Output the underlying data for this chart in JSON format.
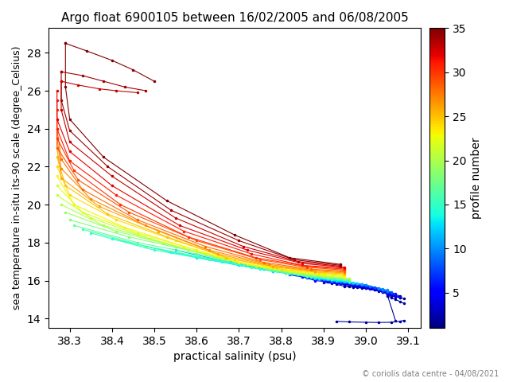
{
  "title": "Argo float 6900105 between 16/02/2005 and 06/08/2005",
  "xlabel": "practical salinity (psu)",
  "ylabel": "sea temperature in-situ its-90 scale (degree_Celsius)",
  "colorbar_label": "profile number",
  "copyright": "© coriolis data centre - 04/08/2021",
  "xlim": [
    38.25,
    39.13
  ],
  "ylim": [
    13.5,
    29.3
  ],
  "colormap": "jet",
  "vmin": 1,
  "vmax": 35,
  "profiles": [
    {
      "num": 1,
      "sal": [
        39.08,
        39.06,
        39.04,
        39.02,
        39.0,
        38.98,
        38.96,
        38.95
      ],
      "temp": [
        15.2,
        15.3,
        15.4,
        15.5,
        15.6,
        15.65,
        15.7,
        15.75
      ]
    },
    {
      "num": 2,
      "sal": [
        39.07,
        39.05,
        39.03,
        39.01,
        38.99,
        38.97,
        38.95,
        38.93
      ],
      "temp": [
        13.9,
        15.3,
        15.45,
        15.55,
        15.6,
        15.65,
        15.7,
        15.8
      ]
    },
    {
      "num": 3,
      "sal": [
        39.06,
        39.04,
        39.02,
        39.0,
        38.98,
        38.95,
        38.92,
        38.9
      ],
      "temp": [
        15.3,
        15.4,
        15.5,
        15.6,
        15.7,
        15.8,
        15.85,
        15.9
      ]
    },
    {
      "num": 4,
      "sal": [
        39.06,
        39.04,
        39.02,
        39.0,
        38.97,
        38.94,
        38.91,
        38.88
      ],
      "temp": [
        15.35,
        15.45,
        15.55,
        15.65,
        15.75,
        15.85,
        15.95,
        16.1
      ]
    },
    {
      "num": 5,
      "sal": [
        39.05,
        39.03,
        39.01,
        38.98,
        38.95,
        38.92,
        38.88,
        38.85
      ],
      "temp": [
        15.4,
        15.5,
        15.6,
        15.7,
        15.8,
        15.9,
        16.0,
        16.2
      ]
    },
    {
      "num": 6,
      "sal": [
        39.04,
        39.02,
        39.0,
        38.97,
        38.93,
        38.9,
        38.86,
        38.82
      ],
      "temp": [
        15.5,
        15.6,
        15.7,
        15.8,
        15.9,
        16.0,
        16.15,
        16.3
      ]
    },
    {
      "num": 7,
      "sal": [
        39.03,
        39.01,
        38.99,
        38.96,
        38.92,
        38.88,
        38.84,
        38.8
      ],
      "temp": [
        15.6,
        15.7,
        15.8,
        15.9,
        16.0,
        16.1,
        16.3,
        16.5
      ]
    },
    {
      "num": 8,
      "sal": [
        39.02,
        39.0,
        38.97,
        38.94,
        38.9,
        38.86,
        38.81,
        38.76
      ],
      "temp": [
        15.65,
        15.75,
        15.85,
        15.95,
        16.05,
        16.2,
        16.4,
        16.6
      ]
    },
    {
      "num": 9,
      "sal": [
        39.01,
        38.99,
        38.96,
        38.93,
        38.89,
        38.84,
        38.78,
        38.72
      ],
      "temp": [
        15.7,
        15.8,
        15.9,
        16.0,
        16.1,
        16.3,
        16.5,
        16.8
      ]
    },
    {
      "num": 10,
      "sal": [
        39.0,
        38.97,
        38.94,
        38.9,
        38.87,
        38.82,
        38.75,
        38.68
      ],
      "temp": [
        15.75,
        15.85,
        15.95,
        16.05,
        16.2,
        16.4,
        16.7,
        17.0
      ]
    },
    {
      "num": 11,
      "sal": [
        38.99,
        38.96,
        38.92,
        38.88,
        38.84,
        38.78,
        38.7,
        38.62
      ],
      "temp": [
        15.8,
        15.9,
        16.0,
        16.1,
        16.3,
        16.5,
        16.8,
        17.2
      ]
    },
    {
      "num": 12,
      "sal": [
        38.98,
        38.95,
        38.91,
        38.86,
        38.81,
        38.74,
        38.65,
        38.55
      ],
      "temp": [
        15.85,
        15.95,
        16.05,
        16.2,
        16.4,
        16.7,
        17.1,
        17.6
      ]
    },
    {
      "num": 13,
      "sal": [
        38.97,
        38.93,
        38.89,
        38.84,
        38.78,
        38.7,
        38.6,
        38.48
      ],
      "temp": [
        15.9,
        16.0,
        16.1,
        16.3,
        16.5,
        16.8,
        17.2,
        17.8
      ]
    },
    {
      "num": 14,
      "sal": [
        38.96,
        38.92,
        38.88,
        38.82,
        38.75,
        38.66,
        38.54,
        38.4
      ],
      "temp": [
        15.95,
        16.05,
        16.15,
        16.35,
        16.6,
        17.0,
        17.5,
        18.2
      ]
    },
    {
      "num": 15,
      "sal": [
        38.96,
        38.92,
        38.87,
        38.81,
        38.73,
        38.63,
        38.5,
        38.35
      ],
      "temp": [
        16.0,
        16.1,
        16.2,
        16.4,
        16.7,
        17.1,
        17.6,
        18.5
      ]
    },
    {
      "num": 16,
      "sal": [
        38.96,
        38.92,
        38.87,
        38.81,
        38.73,
        38.62,
        38.48,
        38.33
      ],
      "temp": [
        16.0,
        16.1,
        16.2,
        16.4,
        16.8,
        17.2,
        17.8,
        18.7
      ]
    },
    {
      "num": 17,
      "sal": [
        38.96,
        38.91,
        38.86,
        38.79,
        38.71,
        38.6,
        38.46,
        38.31
      ],
      "temp": [
        16.05,
        16.15,
        16.25,
        16.5,
        16.9,
        17.4,
        18.0,
        18.9
      ]
    },
    {
      "num": 18,
      "sal": [
        38.96,
        38.91,
        38.85,
        38.78,
        38.69,
        38.58,
        38.44,
        38.3
      ],
      "temp": [
        16.05,
        16.15,
        16.3,
        16.55,
        17.0,
        17.6,
        18.3,
        19.2
      ]
    },
    {
      "num": 19,
      "sal": [
        38.96,
        38.91,
        38.85,
        38.77,
        38.67,
        38.55,
        38.41,
        38.29
      ],
      "temp": [
        16.1,
        16.2,
        16.35,
        16.6,
        17.1,
        17.8,
        18.6,
        19.6
      ]
    },
    {
      "num": 20,
      "sal": [
        38.96,
        38.91,
        38.84,
        38.76,
        38.65,
        38.52,
        38.38,
        38.28
      ],
      "temp": [
        16.1,
        16.2,
        16.4,
        16.7,
        17.2,
        18.0,
        18.9,
        20.0
      ]
    },
    {
      "num": 21,
      "sal": [
        38.95,
        38.9,
        38.83,
        38.74,
        38.62,
        38.49,
        38.35,
        38.27
      ],
      "temp": [
        16.15,
        16.25,
        16.45,
        16.75,
        17.4,
        18.2,
        19.3,
        20.5
      ]
    },
    {
      "num": 22,
      "sal": [
        38.95,
        38.9,
        38.82,
        38.72,
        38.6,
        38.46,
        38.33,
        38.27
      ],
      "temp": [
        16.2,
        16.3,
        16.5,
        16.85,
        17.6,
        18.5,
        19.6,
        21.0
      ]
    },
    {
      "num": 23,
      "sal": [
        38.95,
        38.89,
        38.81,
        38.7,
        38.57,
        38.43,
        38.31,
        38.27
      ],
      "temp": [
        16.25,
        16.35,
        16.55,
        16.95,
        17.8,
        18.8,
        20.0,
        21.5
      ]
    },
    {
      "num": 24,
      "sal": [
        38.95,
        38.89,
        38.8,
        38.69,
        38.55,
        38.41,
        38.3,
        38.27
      ],
      "temp": [
        16.3,
        16.4,
        16.6,
        17.1,
        18.1,
        19.2,
        20.5,
        22.0
      ]
    },
    {
      "num": 25,
      "sal": [
        38.95,
        38.88,
        38.79,
        38.67,
        38.53,
        38.39,
        38.29,
        38.27
      ],
      "temp": [
        16.35,
        16.45,
        16.7,
        17.2,
        18.3,
        19.5,
        21.0,
        22.5
      ]
    },
    {
      "num": 26,
      "sal": [
        38.95,
        38.88,
        38.78,
        38.65,
        38.51,
        38.37,
        38.28,
        38.27
      ],
      "temp": [
        16.4,
        16.5,
        16.75,
        17.4,
        18.6,
        19.9,
        21.4,
        23.0
      ]
    },
    {
      "num": 27,
      "sal": [
        38.95,
        38.87,
        38.77,
        38.63,
        38.48,
        38.35,
        38.28,
        38.27
      ],
      "temp": [
        16.45,
        16.55,
        16.85,
        17.6,
        18.9,
        20.3,
        21.9,
        23.5
      ]
    },
    {
      "num": 28,
      "sal": [
        38.95,
        38.87,
        38.76,
        38.62,
        38.46,
        38.33,
        38.28,
        38.27
      ],
      "temp": [
        16.5,
        16.6,
        16.95,
        17.8,
        19.2,
        20.8,
        22.4,
        24.0
      ]
    },
    {
      "num": 29,
      "sal": [
        38.95,
        38.86,
        38.75,
        38.6,
        38.44,
        38.32,
        38.27,
        38.27
      ],
      "temp": [
        16.55,
        16.7,
        17.1,
        18.1,
        19.6,
        21.3,
        23.0,
        24.5
      ]
    },
    {
      "num": 30,
      "sal": [
        38.95,
        38.86,
        38.74,
        38.58,
        38.42,
        38.31,
        38.27,
        38.27
      ],
      "temp": [
        16.6,
        16.75,
        17.2,
        18.3,
        20.0,
        21.8,
        23.5,
        25.0
      ]
    },
    {
      "num": 31,
      "sal": [
        38.95,
        38.85,
        38.73,
        38.57,
        38.41,
        38.3,
        38.27,
        38.27
      ],
      "temp": [
        16.65,
        16.8,
        17.4,
        18.6,
        20.5,
        22.3,
        24.0,
        25.5
      ]
    },
    {
      "num": 32,
      "sal": [
        38.95,
        38.85,
        38.72,
        38.56,
        38.4,
        38.3,
        38.27,
        38.27
      ],
      "temp": [
        16.7,
        16.9,
        17.6,
        18.9,
        21.0,
        22.8,
        24.5,
        26.0
      ]
    },
    {
      "num": 33,
      "sal": [
        38.94,
        38.84,
        38.71,
        38.55,
        38.4,
        38.3,
        38.28,
        38.28
      ],
      "temp": [
        16.75,
        17.0,
        17.8,
        19.3,
        21.5,
        23.3,
        25.0,
        26.5
      ]
    },
    {
      "num": 34,
      "sal": [
        38.94,
        38.83,
        38.7,
        38.54,
        38.39,
        38.3,
        38.28,
        38.28
      ],
      "temp": [
        16.8,
        17.1,
        18.1,
        19.7,
        22.0,
        23.9,
        25.5,
        27.0
      ]
    },
    {
      "num": 35,
      "sal": [
        38.94,
        38.82,
        38.69,
        38.53,
        38.38,
        38.3,
        38.29,
        38.29
      ],
      "temp": [
        16.85,
        17.2,
        18.4,
        20.2,
        22.5,
        24.5,
        26.2,
        28.5
      ]
    }
  ],
  "hook_profiles": [
    {
      "num": 1,
      "sal": [
        39.09,
        39.08,
        39.07,
        39.06,
        39.05
      ],
      "temp": [
        15.05,
        15.1,
        15.15,
        15.2,
        15.25
      ]
    },
    {
      "num": 2,
      "sal": [
        39.09,
        39.08,
        39.07,
        39.06,
        39.05
      ],
      "temp": [
        14.8,
        14.9,
        15.0,
        15.1,
        15.2
      ]
    },
    {
      "num": 3,
      "sal": [
        39.08,
        39.07,
        39.06,
        39.05
      ],
      "temp": [
        15.1,
        15.15,
        15.2,
        15.25
      ]
    },
    {
      "num": 4,
      "sal": [
        39.08,
        39.07,
        39.06,
        39.05
      ],
      "temp": [
        15.15,
        15.2,
        15.25,
        15.3
      ]
    },
    {
      "num": 5,
      "sal": [
        39.07,
        39.06,
        39.05
      ],
      "temp": [
        15.2,
        15.25,
        15.3
      ]
    },
    {
      "num": 6,
      "sal": [
        39.07,
        39.06,
        39.05
      ],
      "temp": [
        15.3,
        15.35,
        15.4
      ]
    },
    {
      "num": 7,
      "sal": [
        39.06,
        39.05,
        39.04
      ],
      "temp": [
        15.35,
        15.4,
        15.45
      ]
    },
    {
      "num": 8,
      "sal": [
        39.06,
        39.05,
        39.04
      ],
      "temp": [
        15.4,
        15.45,
        15.5
      ]
    },
    {
      "num": 9,
      "sal": [
        39.05,
        39.04,
        39.03
      ],
      "temp": [
        15.45,
        15.5,
        15.55
      ]
    },
    {
      "num": 10,
      "sal": [
        39.05,
        39.04,
        39.03
      ],
      "temp": [
        15.5,
        15.55,
        15.6
      ]
    },
    {
      "num": 2,
      "sal": [
        38.93,
        38.96,
        39.0,
        39.03,
        39.06,
        39.08,
        39.09
      ],
      "temp": [
        13.85,
        13.82,
        13.8,
        13.79,
        13.8,
        13.85,
        13.9
      ]
    }
  ],
  "extra_surface": [
    {
      "num": 33,
      "sal": [
        38.28,
        38.32,
        38.37,
        38.41,
        38.46
      ],
      "temp": [
        26.5,
        26.3,
        26.1,
        26.0,
        25.9
      ]
    },
    {
      "num": 34,
      "sal": [
        38.28,
        38.33,
        38.38,
        38.43,
        38.48
      ],
      "temp": [
        27.0,
        26.8,
        26.5,
        26.2,
        26.0
      ]
    },
    {
      "num": 35,
      "sal": [
        38.29,
        38.34,
        38.4,
        38.45,
        38.5
      ],
      "temp": [
        28.5,
        28.1,
        27.6,
        27.1,
        26.5
      ]
    }
  ]
}
